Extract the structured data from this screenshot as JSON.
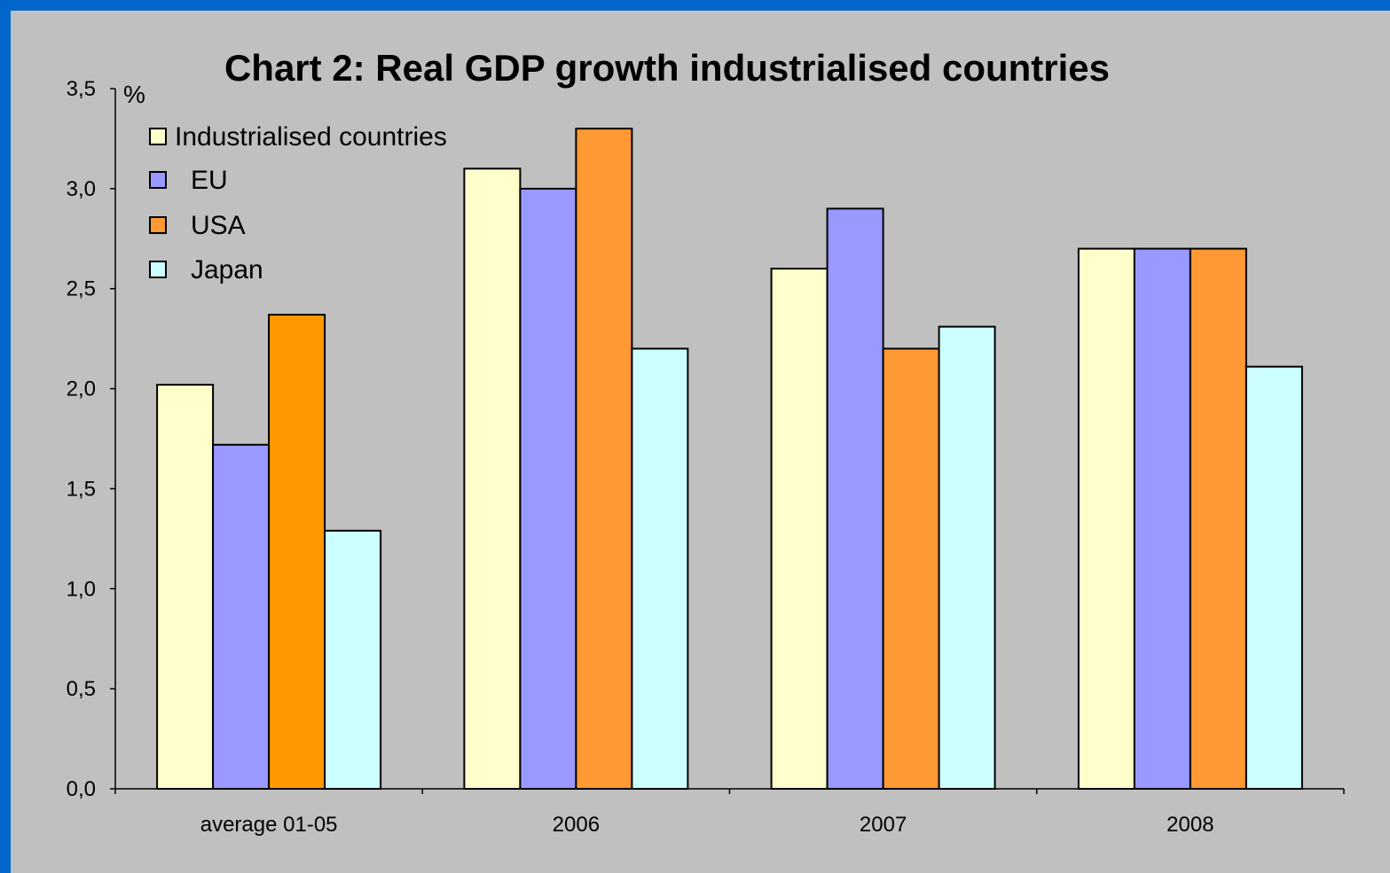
{
  "chart_data": {
    "type": "bar",
    "title": "Chart 2: Real GDP growth industrialised countries",
    "ylabel": "%",
    "xlabel": "",
    "ylim": [
      0,
      3.5
    ],
    "ytick_labels": [
      "0,0",
      "0,5",
      "1,0",
      "1,5",
      "2,0",
      "2,5",
      "3,0",
      "3,5"
    ],
    "categories": [
      "average 01-05",
      "2006",
      "2007",
      "2008"
    ],
    "series": [
      {
        "name": "Industrialised countries",
        "color": "#ffffcc",
        "values": [
          2.02,
          3.1,
          2.6,
          2.7
        ]
      },
      {
        "name": "EU",
        "color": "#9999ff",
        "values": [
          1.72,
          3.0,
          2.9,
          2.7
        ]
      },
      {
        "name": "USA",
        "color": "#ff9933",
        "values": [
          2.37,
          3.3,
          2.2,
          2.7
        ]
      },
      {
        "name": "Japan",
        "color": "#ccffff",
        "values": [
          1.29,
          2.2,
          2.31,
          2.11
        ]
      }
    ],
    "first_group_usa_color": "#ff9900",
    "legend_position": "top-left",
    "grid": false
  },
  "colors": {
    "frame": "#0066cc",
    "plot_background": "#c0c0c0"
  }
}
